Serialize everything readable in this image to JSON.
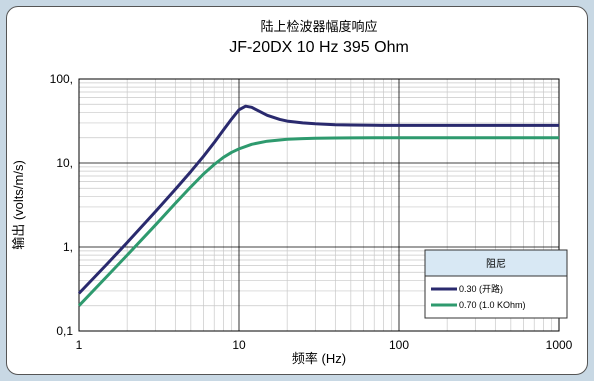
{
  "chart_data": {
    "type": "line",
    "title": "陆上检波器幅度响应",
    "subtitle": "JF-20DX  10 Hz  395 Ohm",
    "xlabel": "频率 (Hz)",
    "ylabel": "输出 (volts/m/s)",
    "x_scale": "log",
    "y_scale": "log",
    "xlim": [
      1,
      1000
    ],
    "ylim": [
      0.1,
      100
    ],
    "x_ticks": [
      1,
      10,
      100,
      1000
    ],
    "x_tick_labels": [
      "1",
      "10",
      "100",
      "1000"
    ],
    "y_ticks": [
      0.1,
      1,
      10,
      100
    ],
    "y_tick_labels": [
      "0,1",
      "1,",
      "10,",
      "100,"
    ],
    "grid": true,
    "legend_title": "阻尼",
    "legend_position": "bottom-right",
    "series": [
      {
        "name": "0.30 (开路)",
        "color": "#2a2a6e",
        "x": [
          1,
          1.5,
          2,
          3,
          4,
          5,
          6,
          7,
          8,
          9,
          10,
          11,
          12,
          13,
          15,
          18,
          20,
          25,
          30,
          40,
          50,
          70,
          100,
          200,
          300,
          500,
          1000
        ],
        "y": [
          0.28,
          0.63,
          1.13,
          2.63,
          4.85,
          7.9,
          12,
          17.5,
          24.8,
          33.5,
          43,
          47.5,
          46,
          42.5,
          37,
          33,
          31.5,
          30,
          29.3,
          28.6,
          28.3,
          28.1,
          28,
          28,
          28,
          28,
          28
        ]
      },
      {
        "name": "0.70 (1.0 KOhm)",
        "color": "#2e9a6e",
        "x": [
          1,
          1.5,
          2,
          3,
          4,
          5,
          6,
          7,
          8,
          9,
          10,
          12,
          15,
          20,
          25,
          30,
          40,
          50,
          70,
          100,
          200,
          500,
          1000
        ],
        "y": [
          0.2,
          0.45,
          0.8,
          1.82,
          3.3,
          5.2,
          7.4,
          9.6,
          11.7,
          13.4,
          14.7,
          16.7,
          18.2,
          19.2,
          19.5,
          19.7,
          19.85,
          19.9,
          19.95,
          20,
          20,
          20,
          20
        ]
      }
    ]
  }
}
